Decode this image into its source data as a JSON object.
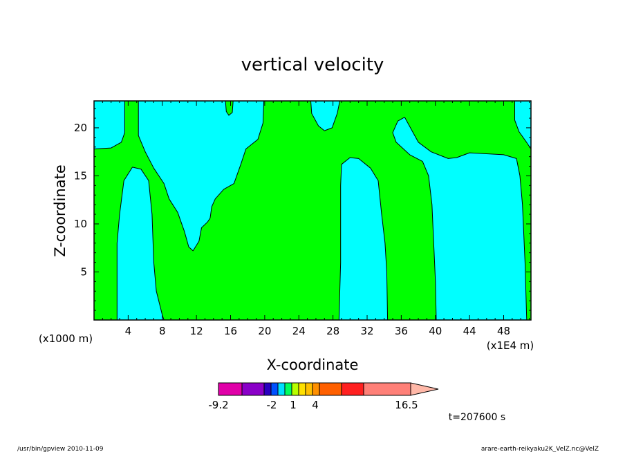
{
  "chart_data": {
    "type": "heatmap",
    "title": "vertical velocity",
    "xlabel": "X-coordinate",
    "ylabel": "Z-coordinate",
    "x_unit_label": "(x1E4 m)",
    "y_unit_label": "(x1000 m)",
    "xlim": [
      0,
      51.2
    ],
    "ylim": [
      0,
      22.8
    ],
    "x_ticks": [
      "4",
      "8",
      "12",
      "16",
      "20",
      "24",
      "28",
      "32",
      "36",
      "40",
      "44",
      "48"
    ],
    "y_ticks": [
      "5",
      "10",
      "15",
      "20"
    ],
    "background_color": "#00ff00",
    "region_color": "#00ffff",
    "contour_level": 1,
    "regions_above_level": [
      {
        "name": "upper-left-corner",
        "points": [
          [
            0,
            22.8
          ],
          [
            3.6,
            22.8
          ],
          [
            3.6,
            19.5
          ],
          [
            3.2,
            18.5
          ],
          [
            2,
            17.9
          ],
          [
            0,
            17.8
          ]
        ]
      },
      {
        "name": "left-column",
        "points": [
          [
            2.7,
            0
          ],
          [
            2.7,
            8
          ],
          [
            3,
            11
          ],
          [
            3.5,
            14.5
          ],
          [
            4.5,
            15.9
          ],
          [
            5.5,
            15.7
          ],
          [
            6.4,
            14.5
          ],
          [
            6.8,
            11
          ],
          [
            7,
            6
          ],
          [
            7.3,
            3
          ],
          [
            8,
            0.5
          ],
          [
            8.2,
            0
          ]
        ]
      },
      {
        "name": "central-plume",
        "points": [
          [
            5.2,
            22.8
          ],
          [
            5.2,
            19.2
          ],
          [
            6,
            17.5
          ],
          [
            7,
            15.8
          ],
          [
            8.2,
            14.2
          ],
          [
            8.8,
            12.6
          ],
          [
            9.8,
            11.2
          ],
          [
            10.6,
            9.2
          ],
          [
            11.1,
            7.6
          ],
          [
            11.6,
            7.2
          ],
          [
            12.3,
            8.2
          ],
          [
            12.6,
            9.6
          ],
          [
            13.3,
            10.2
          ],
          [
            13.6,
            10.6
          ],
          [
            13.8,
            11.8
          ],
          [
            14.2,
            12.6
          ],
          [
            15.2,
            13.6
          ],
          [
            16.4,
            14.2
          ],
          [
            17.2,
            16.2
          ],
          [
            17.8,
            17.8
          ],
          [
            19.2,
            18.8
          ],
          [
            19.8,
            20.5
          ],
          [
            19.9,
            22.8
          ],
          [
            16.3,
            22.8
          ],
          [
            16.2,
            21.6
          ],
          [
            15.8,
            21.3
          ],
          [
            15.5,
            21.7
          ],
          [
            15.4,
            22.8
          ]
        ]
      },
      {
        "name": "upper-mid-lobe",
        "points": [
          [
            25.4,
            22.8
          ],
          [
            25.5,
            21.5
          ],
          [
            26.3,
            20.2
          ],
          [
            27,
            19.7
          ],
          [
            27.9,
            20
          ],
          [
            28.5,
            21.5
          ],
          [
            28.8,
            22.8
          ]
        ]
      },
      {
        "name": "mid-right-column",
        "points": [
          [
            28.7,
            0
          ],
          [
            28.9,
            6
          ],
          [
            28.9,
            14
          ],
          [
            29,
            16.2
          ],
          [
            30,
            16.9
          ],
          [
            31,
            16.8
          ],
          [
            32.4,
            15.8
          ],
          [
            33.3,
            14.5
          ],
          [
            33.7,
            11
          ],
          [
            34.1,
            8
          ],
          [
            34.3,
            5
          ],
          [
            34.4,
            0
          ]
        ]
      },
      {
        "name": "right-plume",
        "points": [
          [
            36.4,
            21.1
          ],
          [
            35.6,
            20.7
          ],
          [
            35,
            19.5
          ],
          [
            35.4,
            18.5
          ],
          [
            37,
            17.2
          ],
          [
            38.5,
            16.5
          ],
          [
            39.2,
            15
          ],
          [
            39.6,
            12
          ],
          [
            39.8,
            8
          ],
          [
            40,
            4
          ],
          [
            40.1,
            0
          ],
          [
            50.7,
            0
          ],
          [
            50.5,
            6
          ],
          [
            50.2,
            12
          ],
          [
            49.9,
            15
          ],
          [
            49.5,
            16.8
          ],
          [
            48,
            17.2
          ],
          [
            46,
            17.3
          ],
          [
            44,
            17.4
          ],
          [
            42.5,
            16.9
          ],
          [
            41.5,
            16.8
          ],
          [
            39.5,
            17.5
          ],
          [
            38,
            18.5
          ],
          [
            37.2,
            19.8
          ]
        ]
      },
      {
        "name": "upper-right-corner",
        "points": [
          [
            49.3,
            22.8
          ],
          [
            49.3,
            20.8
          ],
          [
            49.8,
            19.6
          ],
          [
            50.6,
            18.6
          ],
          [
            51.2,
            17.8
          ],
          [
            51.2,
            22.8
          ]
        ]
      }
    ],
    "colorbar": {
      "colors": [
        "#e000a8",
        "#8a00c8",
        "#2a00c0",
        "#0050ff",
        "#00e0ff",
        "#00ff60",
        "#b8ff00",
        "#ffe000",
        "#ffc000",
        "#ff9000",
        "#ff6000",
        "#ff2020",
        "#ff8078",
        "#ffb8a8"
      ],
      "tick_labels": [
        "-9.2",
        "-2",
        "1",
        "4",
        "16.5"
      ]
    },
    "time_label": "t=207600 s"
  },
  "footer": {
    "left": "/usr/bin/gpview  2010-11-09",
    "right": "arare-earth-reikyaku2K_VelZ.nc@VelZ"
  }
}
